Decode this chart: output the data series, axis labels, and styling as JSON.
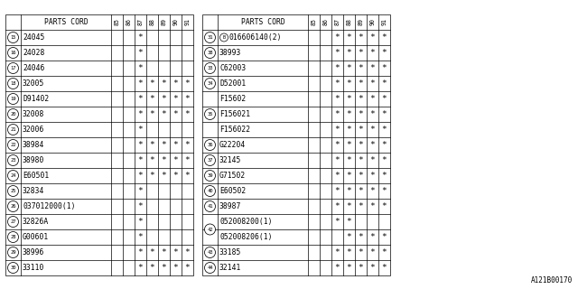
{
  "left_table": {
    "rows": [
      {
        "num": "15",
        "part": "24045",
        "marks": [
          0,
          0,
          1,
          0,
          0,
          0,
          0
        ]
      },
      {
        "num": "16",
        "part": "24028",
        "marks": [
          0,
          0,
          1,
          0,
          0,
          0,
          0
        ]
      },
      {
        "num": "17",
        "part": "24046",
        "marks": [
          0,
          0,
          1,
          0,
          0,
          0,
          0
        ]
      },
      {
        "num": "18",
        "part": "32005",
        "marks": [
          0,
          0,
          1,
          1,
          1,
          1,
          1
        ]
      },
      {
        "num": "19",
        "part": "D91402",
        "marks": [
          0,
          0,
          1,
          1,
          1,
          1,
          1
        ]
      },
      {
        "num": "20",
        "part": "32008",
        "marks": [
          0,
          0,
          1,
          1,
          1,
          1,
          1
        ]
      },
      {
        "num": "21",
        "part": "32006",
        "marks": [
          0,
          0,
          1,
          0,
          0,
          0,
          0
        ]
      },
      {
        "num": "22",
        "part": "38984",
        "marks": [
          0,
          0,
          1,
          1,
          1,
          1,
          1
        ]
      },
      {
        "num": "23",
        "part": "38980",
        "marks": [
          0,
          0,
          1,
          1,
          1,
          1,
          1
        ]
      },
      {
        "num": "24",
        "part": "E60501",
        "marks": [
          0,
          0,
          1,
          1,
          1,
          1,
          1
        ]
      },
      {
        "num": "25",
        "part": "32834",
        "marks": [
          0,
          0,
          1,
          0,
          0,
          0,
          0
        ]
      },
      {
        "num": "26",
        "part": "037012000(1)",
        "marks": [
          0,
          0,
          1,
          0,
          0,
          0,
          0
        ]
      },
      {
        "num": "27",
        "part": "32826A",
        "marks": [
          0,
          0,
          1,
          0,
          0,
          0,
          0
        ]
      },
      {
        "num": "28",
        "part": "G00601",
        "marks": [
          0,
          0,
          1,
          0,
          0,
          0,
          0
        ]
      },
      {
        "num": "29",
        "part": "38996",
        "marks": [
          0,
          0,
          1,
          1,
          1,
          1,
          1
        ]
      },
      {
        "num": "30",
        "part": "33110",
        "marks": [
          0,
          0,
          1,
          1,
          1,
          1,
          1
        ]
      }
    ]
  },
  "right_table": {
    "rows": [
      {
        "num": "31",
        "part": "016606140(2)",
        "circle_b": true,
        "marks": [
          0,
          0,
          1,
          1,
          1,
          1,
          1
        ]
      },
      {
        "num": "38",
        "part": "38993",
        "circle_b": false,
        "marks": [
          0,
          0,
          1,
          1,
          1,
          1,
          1
        ]
      },
      {
        "num": "33",
        "part": "C62003",
        "circle_b": false,
        "marks": [
          0,
          0,
          1,
          1,
          1,
          1,
          1
        ]
      },
      {
        "num": "34",
        "part": "D52001",
        "circle_b": false,
        "marks": [
          0,
          0,
          1,
          1,
          1,
          1,
          1
        ]
      },
      {
        "num": "",
        "part": "F15602",
        "circle_b": false,
        "marks": [
          0,
          0,
          1,
          1,
          1,
          1,
          1
        ]
      },
      {
        "num": "35",
        "part": "F156021",
        "circle_b": false,
        "marks": [
          0,
          0,
          1,
          1,
          1,
          1,
          1
        ]
      },
      {
        "num": "",
        "part": "F156022",
        "circle_b": false,
        "marks": [
          0,
          0,
          1,
          1,
          1,
          1,
          1
        ]
      },
      {
        "num": "36",
        "part": "G22204",
        "circle_b": false,
        "marks": [
          0,
          0,
          1,
          1,
          1,
          1,
          1
        ]
      },
      {
        "num": "37",
        "part": "32145",
        "circle_b": false,
        "marks": [
          0,
          0,
          1,
          1,
          1,
          1,
          1
        ]
      },
      {
        "num": "39",
        "part": "G71502",
        "circle_b": false,
        "marks": [
          0,
          0,
          1,
          1,
          1,
          1,
          1
        ]
      },
      {
        "num": "40",
        "part": "E60502",
        "circle_b": false,
        "marks": [
          0,
          0,
          1,
          1,
          1,
          1,
          1
        ]
      },
      {
        "num": "41",
        "part": "38987",
        "circle_b": false,
        "marks": [
          0,
          0,
          1,
          1,
          1,
          1,
          1
        ]
      },
      {
        "num": "42",
        "part": "052008200(1)",
        "circle_b": false,
        "marks": [
          0,
          0,
          1,
          1,
          0,
          0,
          0
        ],
        "rowspan": 2
      },
      {
        "num": "",
        "part": "052008206(1)",
        "circle_b": false,
        "marks": [
          0,
          0,
          0,
          1,
          1,
          1,
          1
        ]
      },
      {
        "num": "43",
        "part": "33185",
        "circle_b": false,
        "marks": [
          0,
          0,
          1,
          1,
          1,
          1,
          1
        ]
      },
      {
        "num": "44",
        "part": "32141",
        "circle_b": false,
        "marks": [
          0,
          0,
          1,
          1,
          1,
          1,
          1
        ]
      }
    ]
  },
  "years": [
    "85",
    "86",
    "87",
    "88",
    "89",
    "90",
    "91"
  ],
  "footnote": "A121B00170",
  "bg_color": "#ffffff",
  "line_color": "#000000",
  "text_color": "#000000"
}
